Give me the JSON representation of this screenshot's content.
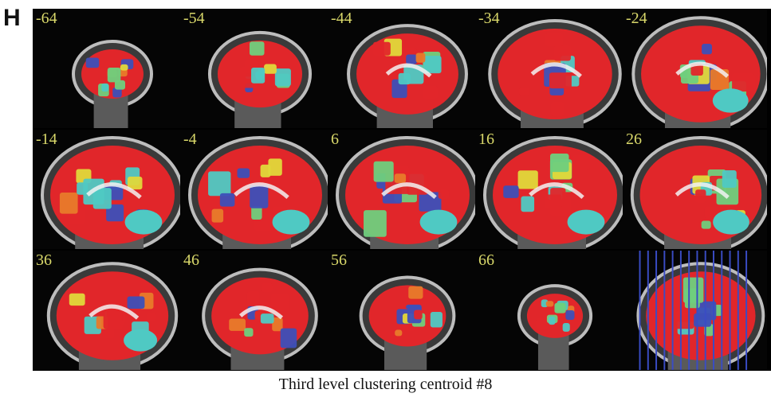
{
  "panel_letter": "H",
  "slice_labels": [
    "-64",
    "-54",
    "-44",
    "-34",
    "-24",
    "-14",
    "-4",
    "6",
    "16",
    "26",
    "36",
    "46",
    "56",
    "66"
  ],
  "caption": "Third level clustering centroid #8",
  "colors": {
    "red": "#e1262a",
    "cyan": "#4fc9c3",
    "blue": "#3d4fb8",
    "green": "#6fcf7d",
    "yellow": "#e0d83a",
    "orange": "#e87a2a",
    "white": "#f2f2f2",
    "label": "#d9d86a",
    "locator_lines": "#3a4cc4"
  }
}
